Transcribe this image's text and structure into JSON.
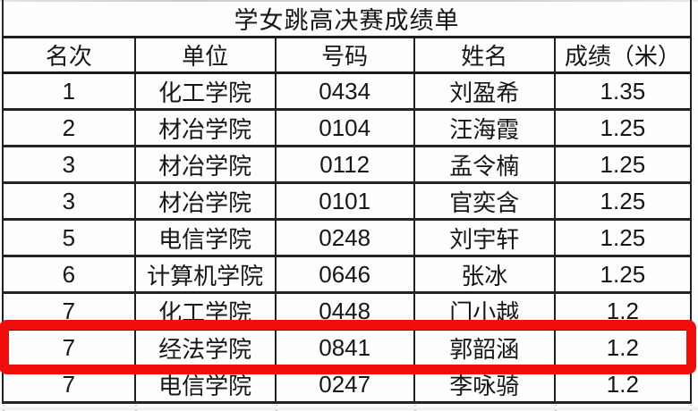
{
  "page": {
    "title": "学女跳高决赛成绩单"
  },
  "table": {
    "columns": [
      "名次",
      "单位",
      "号码",
      "姓名",
      "成绩（米）"
    ],
    "rows": [
      [
        "1",
        "化工学院",
        "0434",
        "刘盈希",
        "1.35"
      ],
      [
        "2",
        "材冶学院",
        "0104",
        "汪海霞",
        "1.25"
      ],
      [
        "3",
        "材冶学院",
        "0112",
        "孟令楠",
        "1.25"
      ],
      [
        "3",
        "材冶学院",
        "0101",
        "官奕含",
        "1.25"
      ],
      [
        "5",
        "电信学院",
        "0248",
        "刘宇轩",
        "1.25"
      ],
      [
        "6",
        "计算机学院",
        "0646",
        "张冰",
        "1.25"
      ],
      [
        "7",
        "化工学院",
        "0448",
        "门小越",
        "1.2"
      ],
      [
        "7",
        "经法学院",
        "0841",
        "郭韶涵",
        "1.2"
      ],
      [
        "7",
        "电信学院",
        "0247",
        "李咏骑",
        "1.2"
      ]
    ],
    "highlighted_row_index": 7
  },
  "annotation": {
    "type": "red-rectangle",
    "color": "#f20d0d"
  },
  "colors": {
    "table_border": "#212121",
    "text": "#161616",
    "background": "#fefefe",
    "highlight": "#f20d0d"
  }
}
